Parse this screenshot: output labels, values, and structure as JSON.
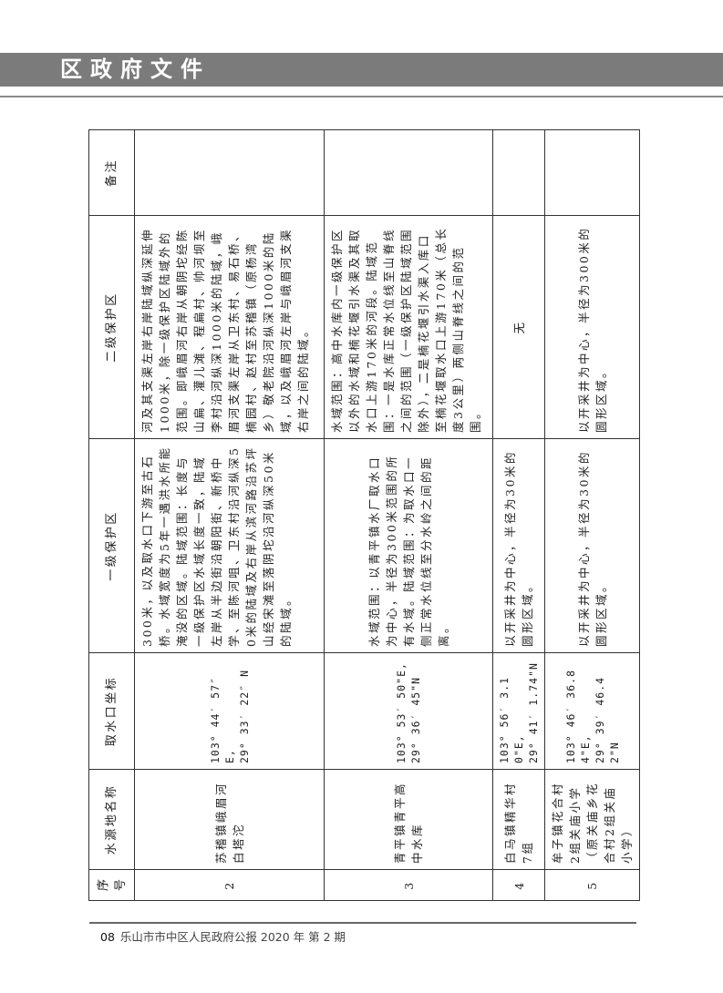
{
  "header": {
    "title": "区政府文件"
  },
  "table": {
    "columns": [
      "序号",
      "水源地名称",
      "取水口坐标",
      "一级保护区",
      "二级保护区",
      "备注"
    ],
    "rows": [
      {
        "no": "2",
        "name": "苏稽镇峨眉河白塔沱",
        "coord_e": "103° 44′ 57″ E,",
        "coord_n": "29° 33′ 22″ N",
        "level1": "300米，以及取水口下游至古石桥。水域宽度为5年一遇洪水所能淹没的区域。陆域范围：长度与一级保护区水域长度一致，陆域左岸从半边街沿朝阳街、新桥中学、至陈河咀、卫东村沿河纵深50米的陆域及右岸从滨河路沿苏坪山经宋滩至落阴坨沿河纵深50米的陆域。",
        "level2": "河及其支渠左岸右岸陆域纵深延伸1000米，除一级保护区陆域外的范围。即峨眉河右岸从朝阴坨经陈山扁、灌儿滩、程扁村、帅河坝至李村沿河纵深1000米的陆域，峨眉河支渠左岸从卫东村、易石桥、楠园村、赵村至苏稽镇（原杨湾乡）敬老院沿河纵深1000米的陆域，以及峨眉河左岸与峨眉河支渠右岸之间的陆域。",
        "remark": ""
      },
      {
        "no": "3",
        "name": "青平镇青平高中水库",
        "coord_e": "103° 53′ 50\"E,",
        "coord_n": "29° 36′ 45\"N",
        "level1": "水域范围：以青平镇水厂取水口为中心，半径为300米范围的所有水域。陆域范围：为取水口一侧正常水位线至分水岭之间的距离。",
        "level2": "水域范围：高中水库内一级保护区以外的水域和楠花堰引水渠及其取水口上游170米的河段。陆域范围：一是水库正常水位线至山脊线之间的范围（一级保护区陆域范围除外），二是楠花堰引水渠入库口至楠花堰取水口上游170米（总长度3公里）两侧山脊线之间的范围。",
        "remark": ""
      },
      {
        "no": "4",
        "name": "白马镇精华村7组",
        "coord_e": "103° 56′ 3.10\"E,",
        "coord_n": "29° 41′ 1.74\"N",
        "level1": "以开采井为中心，半径为30米的圆形区域。",
        "level2": "无",
        "remark": ""
      },
      {
        "no": "5",
        "name": "牟子镇花合村2组关庙小学（原关庙乡花合村2组关庙小学）",
        "coord_e": "103° 46′ 36.84\"E,",
        "coord_n": "29° 39′ 46.42\"N",
        "level1": "以开采井为中心，半径为30米的圆形区域。",
        "level2": "以开采井为中心，半径为300米的圆形区域。",
        "remark": ""
      }
    ]
  },
  "footer": {
    "page": "08",
    "publication": "乐山市市中区人民政府公报 2020 年  第 2 期"
  }
}
